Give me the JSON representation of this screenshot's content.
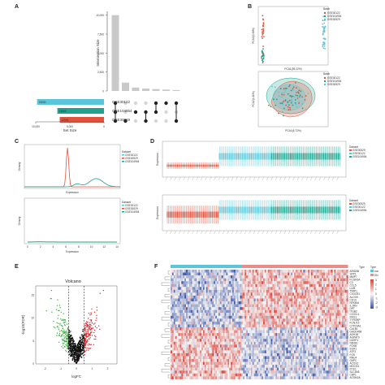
{
  "panels": {
    "A": "A",
    "B": "B",
    "C": "C",
    "D": "D",
    "E": "E",
    "F": "F"
  },
  "colors": {
    "red": "#e0533d",
    "blue": "#5bc6d9",
    "green": "#1fa38f",
    "volc_up": "#e0252b",
    "volc_down": "#3cae3f",
    "volc_ns": "#111111",
    "heat_hi": "#d8433a",
    "heat_lo": "#3a55a6",
    "heat_mid": "#f7f7f7"
  },
  "chart_data": [
    {
      "panel": "A",
      "type": "bar",
      "title": "",
      "ylabel": "Intersection Size",
      "yticks": [
        "0",
        "2,500",
        "5,000",
        "7,500",
        "10,000"
      ],
      "ylim": [
        0,
        10500
      ],
      "values": [
        10000,
        1100,
        450,
        320,
        250,
        180,
        120
      ],
      "sets": [
        {
          "name": "GSE30529",
          "size": "12969",
          "color": "#e0533d",
          "value": 12969
        },
        {
          "name": "GSE104954",
          "size": "13654",
          "color": "#1fa38f",
          "value": 13654
        },
        {
          "name": "GSE30122",
          "size": "19630",
          "color": "#5bc6d9",
          "value": 19630
        }
      ],
      "set_xlabel": "Set Size",
      "set_xticks": [
        "10,000",
        "5,000",
        "0"
      ],
      "matrix": [
        [
          1,
          1,
          1
        ],
        [
          1,
          0,
          0
        ],
        [
          0,
          1,
          0
        ],
        [
          1,
          1,
          0
        ],
        [
          0,
          1,
          1
        ],
        [
          0,
          0,
          1
        ],
        [
          1,
          0,
          1
        ]
      ]
    },
    {
      "panel": "B-top",
      "type": "scatter",
      "xlabel": "PCA1(99.22%)",
      "ylabel": "PCA2(0.48%)",
      "legend_title": "Batch",
      "legend": [
        "GSE30122",
        "GSE104954",
        "GSE30529"
      ]
    },
    {
      "panel": "B-bottom",
      "type": "scatter",
      "xlabel": "PCA1(6.72%)",
      "ylabel": "PCA2(4.11%)",
      "legend_title": "Batch",
      "legend": [
        "GSE30122",
        "GSE104954",
        "GSE30529"
      ]
    },
    {
      "panel": "C-top",
      "type": "line",
      "xlabel": "Expression",
      "ylabel": "Density",
      "legend_title": "Dataset",
      "legend": [
        "GSE30122",
        "GSE30529",
        "GSE104954"
      ]
    },
    {
      "panel": "C-bottom",
      "type": "line",
      "xlabel": "Expression",
      "ylabel": "Density",
      "legend_title": "Dataset",
      "legend": [
        "GSE30122",
        "GSE30529",
        "GSE104954"
      ],
      "xticks": [
        "0",
        "2",
        "4",
        "6",
        "8",
        "10",
        "12",
        "14"
      ]
    },
    {
      "panel": "D-top",
      "type": "box",
      "ylabel": "Expression",
      "legend_title": "Dataset",
      "legend": [
        "GSE30529",
        "GSE30122",
        "GSE104954"
      ]
    },
    {
      "panel": "D-bottom",
      "type": "box",
      "ylabel": "Expression",
      "legend_title": "Dataset",
      "legend": [
        "GSE30529",
        "GSE30122",
        "GSE104954"
      ]
    },
    {
      "panel": "E",
      "type": "scatter",
      "title": "Volcano",
      "xlabel": "logFC",
      "ylabel": "-log10(FDR)",
      "xticks": [
        "-2",
        "-1",
        "0",
        "1",
        "2"
      ],
      "yticks": [
        "0",
        "5",
        "10",
        "15"
      ],
      "xlim": [
        -2.6,
        2.6
      ],
      "ylim": [
        0,
        17
      ]
    },
    {
      "panel": "F",
      "type": "heatmap",
      "legend_title": "Type",
      "legend": [
        "con",
        "DN"
      ],
      "scale_ticks": [
        "3",
        "2",
        "1",
        "0",
        "-1",
        "-2",
        "-3"
      ],
      "genes": [
        "ARID5B",
        "SPP1",
        "MMP7",
        "FCGR3A",
        "C3",
        "CCL5",
        "LUM",
        "TIMP1",
        "CX3CR1",
        "ALOX5",
        "CD14",
        "NFKBIA",
        "IL1RN",
        "DPT",
        "ITGB2",
        "CX3CL1",
        "RGS1",
        "TYROBP",
        "KCNJ15",
        "CYP24A1",
        "CALB1",
        "GADD45B",
        "ADH1B",
        "AGPAT9",
        "DUSP1",
        "NR4A1",
        "FOSB",
        "EGR1",
        "ATF3",
        "FOS",
        "RNU4",
        "G6PC",
        "ACOX2",
        "MOCS3",
        "PCK1",
        "SLC5A8",
        "CBP1",
        "ACSM2A"
      ]
    }
  ]
}
